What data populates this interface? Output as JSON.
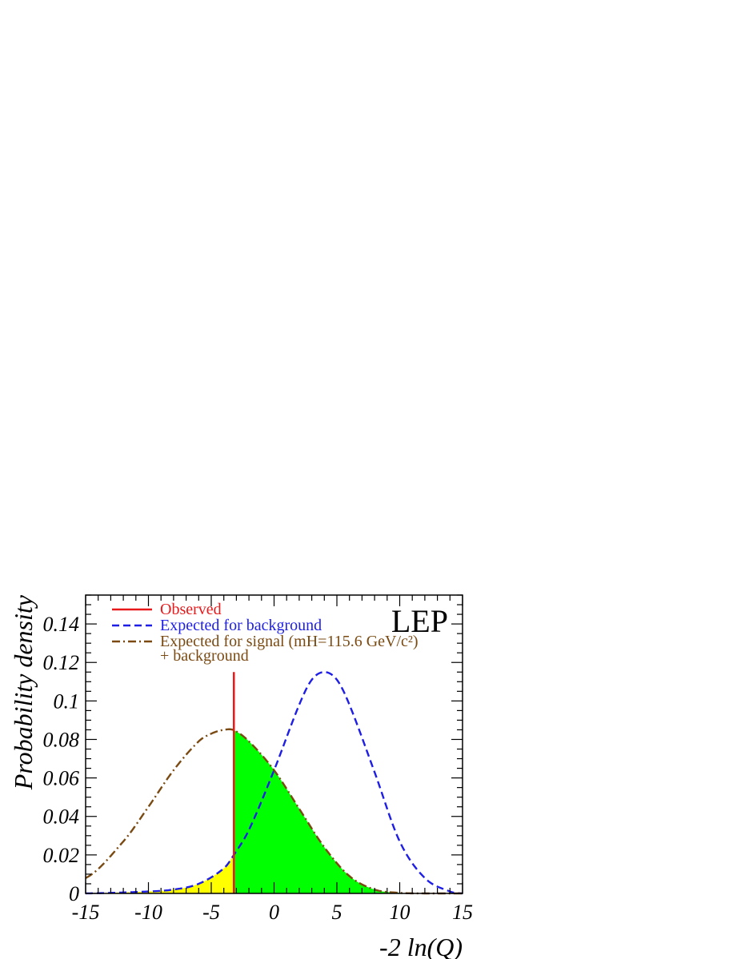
{
  "chart_data": {
    "type": "line",
    "xlabel": "-2 ln(Q)",
    "ylabel": "Probability density",
    "corner_label": "LEP",
    "xlim": [
      -15,
      15
    ],
    "ylim": [
      0,
      0.155
    ],
    "x_ticks": [
      "-15",
      "-10",
      "-5",
      "0",
      "5",
      "10",
      "15"
    ],
    "y_ticks": [
      "0",
      "0.02",
      "0.04",
      "0.06",
      "0.08",
      "0.1",
      "0.12",
      "0.14"
    ],
    "grid": false,
    "legend_position": "top-left",
    "observed": {
      "label": "Observed",
      "x": -3.2,
      "y_top": 0.115,
      "color": "#e8191b"
    },
    "series": [
      {
        "name": "Expected for background",
        "style": "dashed",
        "color": "#1e1ee6",
        "x": [
          -15,
          -10,
          -8,
          -6,
          -4,
          -3.2,
          -2,
          0,
          2,
          3,
          4,
          5,
          6,
          8,
          10,
          12,
          14,
          15
        ],
        "values": [
          0,
          0.001,
          0.002,
          0.005,
          0.013,
          0.02,
          0.033,
          0.064,
          0.098,
          0.111,
          0.115,
          0.111,
          0.098,
          0.063,
          0.027,
          0.008,
          0.001,
          0
        ]
      },
      {
        "name": "Expected for signal (mH=115.6 GeV/c²)",
        "name_line2": "+ background",
        "style": "dash-dot",
        "color": "#7a4a12",
        "x": [
          -15,
          -12,
          -10,
          -8,
          -6,
          -5,
          -4,
          -3.2,
          -2,
          0,
          2,
          4,
          6,
          8,
          10,
          12,
          14,
          15
        ],
        "values": [
          0.008,
          0.027,
          0.045,
          0.064,
          0.079,
          0.083,
          0.085,
          0.0848,
          0.079,
          0.064,
          0.044,
          0.024,
          0.009,
          0.002,
          0.0003,
          0,
          0,
          0
        ]
      }
    ],
    "fill_regions": [
      {
        "from_x": -15,
        "to_x": -3.2,
        "under": "Expected for background",
        "color": "#ffff00"
      },
      {
        "from_x": -3.2,
        "to_x": 15,
        "under": "Expected for signal (mH=115.6 GeV/c²)",
        "color": "#00ff00"
      }
    ]
  }
}
